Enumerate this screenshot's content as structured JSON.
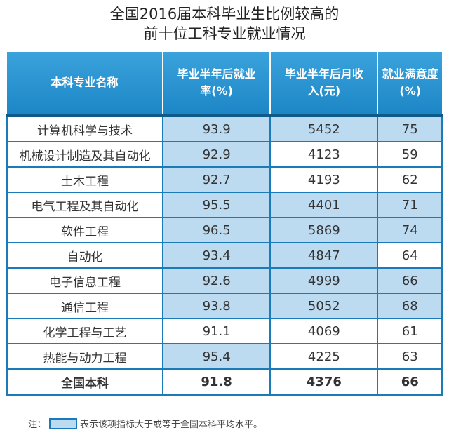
{
  "title": {
    "line1": "全国2016届本科毕业生比例较高的",
    "line2": "前十位工科专业就业情况"
  },
  "headers": [
    "本科专业名称",
    "毕业半年后就业率(%)",
    "毕业半年后月收入(元)",
    "就业满意度(%)"
  ],
  "rows": [
    {
      "name": "计算机科学与技术",
      "rate": "93.9",
      "income": "5452",
      "sat": "75",
      "hl": [
        true,
        true,
        true
      ]
    },
    {
      "name": "机械设计制造及其自动化",
      "rate": "92.9",
      "income": "4123",
      "sat": "59",
      "hl": [
        true,
        false,
        false
      ]
    },
    {
      "name": "土木工程",
      "rate": "92.7",
      "income": "4193",
      "sat": "62",
      "hl": [
        true,
        false,
        false
      ]
    },
    {
      "name": "电气工程及其自动化",
      "rate": "95.5",
      "income": "4401",
      "sat": "71",
      "hl": [
        true,
        true,
        true
      ]
    },
    {
      "name": "软件工程",
      "rate": "96.5",
      "income": "5869",
      "sat": "74",
      "hl": [
        true,
        true,
        true
      ]
    },
    {
      "name": "自动化",
      "rate": "93.4",
      "income": "4847",
      "sat": "64",
      "hl": [
        true,
        true,
        false
      ]
    },
    {
      "name": "电子信息工程",
      "rate": "92.6",
      "income": "4999",
      "sat": "66",
      "hl": [
        true,
        true,
        true
      ]
    },
    {
      "name": "通信工程",
      "rate": "93.8",
      "income": "5052",
      "sat": "68",
      "hl": [
        true,
        true,
        true
      ]
    },
    {
      "name": "化学工程与工艺",
      "rate": "91.1",
      "income": "4069",
      "sat": "61",
      "hl": [
        false,
        false,
        false
      ]
    },
    {
      "name": "热能与动力工程",
      "rate": "95.4",
      "income": "4225",
      "sat": "63",
      "hl": [
        true,
        false,
        false
      ]
    }
  ],
  "total": {
    "name": "全国本科",
    "rate": "91.8",
    "income": "4376",
    "sat": "66"
  },
  "note": {
    "prefix": "注：",
    "text": "表示该项指标大于或等于全国本科平均水平。"
  },
  "colors": {
    "header": "#2493d0",
    "highlight": "#bcdaf0",
    "border": "#1a7bb8"
  }
}
